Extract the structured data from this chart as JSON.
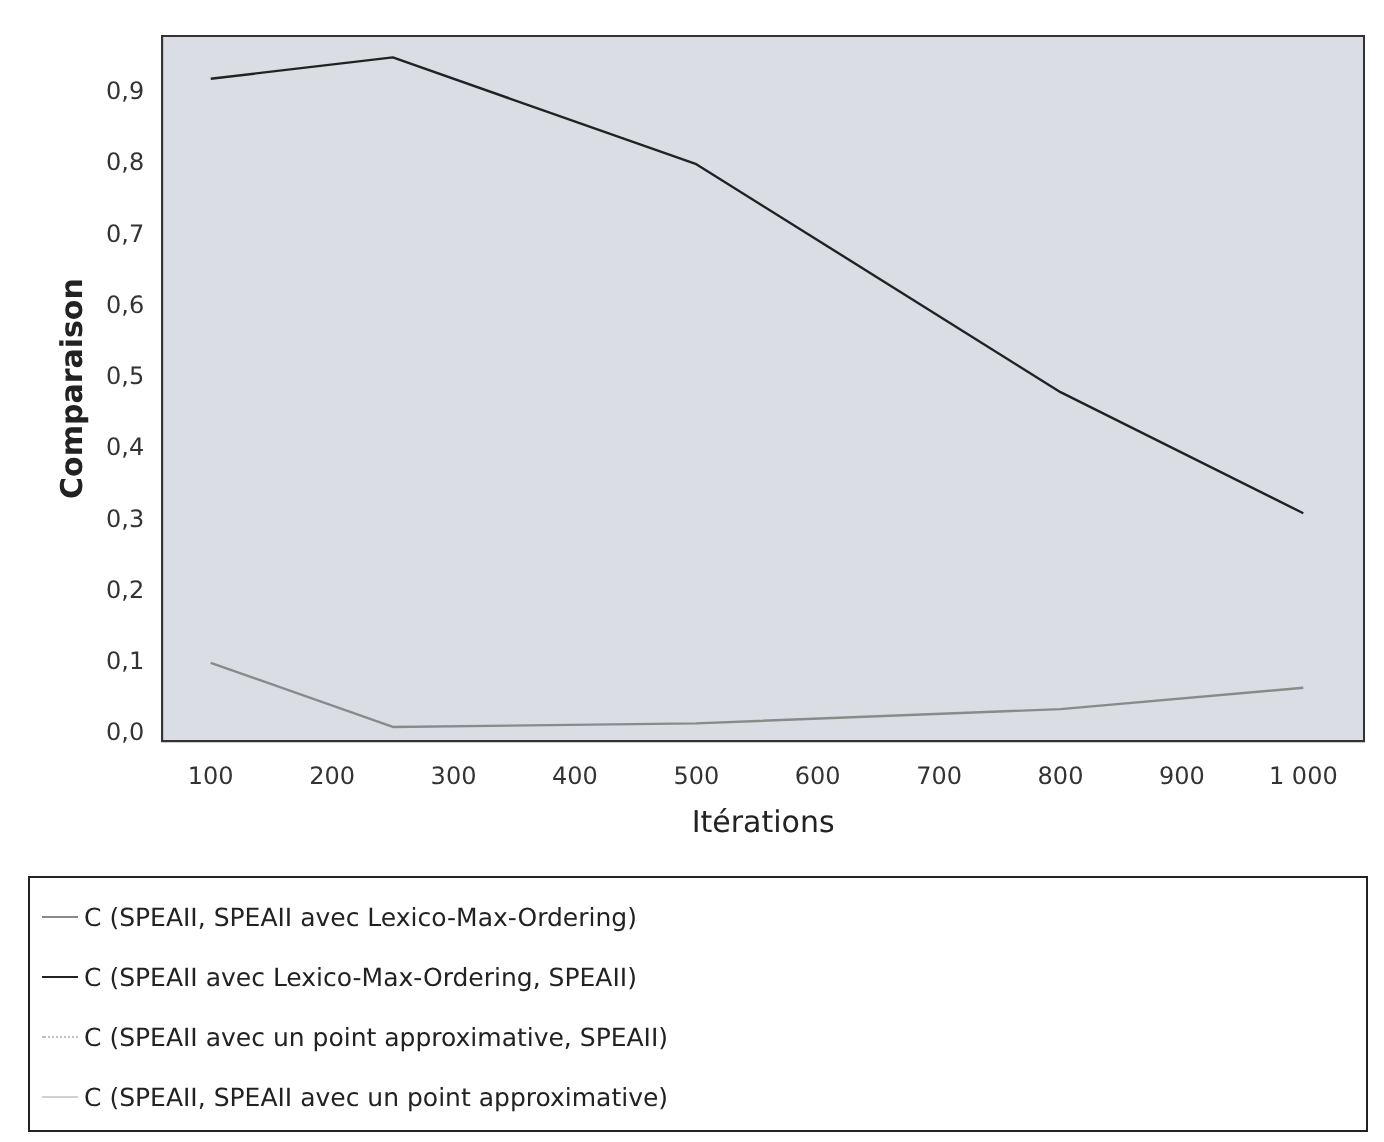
{
  "chart_data": {
    "type": "line",
    "xlabel": "Itérations",
    "ylabel": "Comparaison",
    "x": [
      100,
      250,
      500,
      800,
      1000
    ],
    "series": [
      {
        "name": "C (SPEAII, SPEAII avec Lexico-Max-Ordering)",
        "color": "#8a8a8a",
        "values": [
          0.1,
          0.01,
          0.015,
          0.035,
          0.065
        ]
      },
      {
        "name": "C (SPEAII avec Lexico-Max-Ordering, SPEAII)",
        "color": "#222222",
        "values": [
          0.92,
          0.95,
          0.8,
          0.48,
          0.31
        ]
      },
      {
        "name": "C (SPEAII avec un point approximative, SPEAII)",
        "color": "#c0c0c0",
        "line_style": "dotted",
        "values": [
          null,
          null,
          null,
          null,
          null
        ]
      },
      {
        "name": "C (SPEAII, SPEAII avec un point approximative)",
        "color": "#d0d0d0",
        "values": [
          null,
          null,
          null,
          null,
          null
        ]
      }
    ],
    "xlim": [
      60,
      1050
    ],
    "ylim": [
      -0.01,
      0.98
    ],
    "xticks": [
      100,
      200,
      300,
      400,
      500,
      600,
      700,
      800,
      900,
      {
        "value": 1000,
        "label": "1 000"
      }
    ],
    "yticks": [
      {
        "value": 0,
        "label": "0,0"
      },
      {
        "value": 0.1,
        "label": "0,1"
      },
      {
        "value": 0.2,
        "label": "0,2"
      },
      {
        "value": 0.3,
        "label": "0,3"
      },
      {
        "value": 0.4,
        "label": "0,4"
      },
      {
        "value": 0.5,
        "label": "0,5"
      },
      {
        "value": 0.6,
        "label": "0,6"
      },
      {
        "value": 0.7,
        "label": "0,7"
      },
      {
        "value": 0.8,
        "label": "0,8"
      },
      {
        "value": 0.9,
        "label": "0,9"
      }
    ],
    "grid": false,
    "legend": "bottom",
    "line_style": "solid",
    "marker": "none"
  }
}
